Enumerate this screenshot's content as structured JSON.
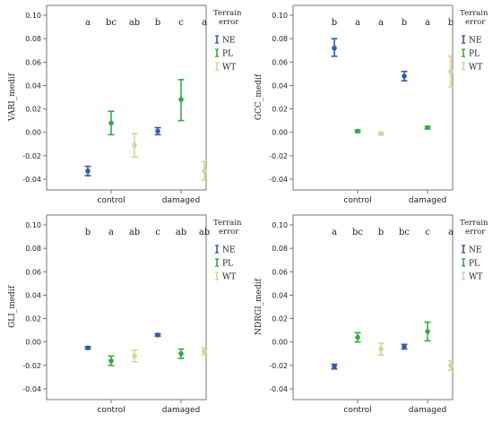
{
  "chart_data": [
    {
      "type": "scatter",
      "ylabel": "VARI_medif",
      "categories": [
        "control",
        "damaged"
      ],
      "ylim": [
        -0.05,
        0.1
      ],
      "yticks": [
        "0.10",
        "0.08",
        "0.06",
        "0.04",
        "0.02",
        "0.00",
        "-0.02",
        "-0.04"
      ],
      "legend_title": "Terrain error",
      "series": [
        {
          "name": "NE",
          "color": "#3a5aa8",
          "mean": [
            -0.033,
            0.001
          ],
          "ci_low": [
            -0.037,
            -0.002
          ],
          "ci_high": [
            -0.029,
            0.004
          ]
        },
        {
          "name": "PL",
          "color": "#3aa84a",
          "mean": [
            0.008,
            0.028
          ],
          "ci_low": [
            -0.002,
            0.01
          ],
          "ci_high": [
            0.018,
            0.045
          ]
        },
        {
          "name": "WT",
          "color": "#d8d49a",
          "mean": [
            -0.011,
            -0.033
          ],
          "ci_low": [
            -0.021,
            -0.041
          ],
          "ci_high": [
            -0.001,
            -0.025
          ]
        }
      ],
      "letters": [
        [
          "a",
          "bc",
          "ab"
        ],
        [
          "b",
          "c",
          "a"
        ]
      ]
    },
    {
      "type": "scatter",
      "ylabel": "GCC_medif",
      "categories": [
        "control",
        "damaged"
      ],
      "ylim": [
        -0.05,
        0.1
      ],
      "yticks": [
        "0.10",
        "0.08",
        "0.06",
        "0.04",
        "0.02",
        "0.00",
        "-0.02",
        "-0.04"
      ],
      "legend_title": "Terrain error",
      "series": [
        {
          "name": "NE",
          "color": "#3a5aa8",
          "mean": [
            0.072,
            0.048
          ],
          "ci_low": [
            0.065,
            0.044
          ],
          "ci_high": [
            0.08,
            0.052
          ]
        },
        {
          "name": "PL",
          "color": "#3aa84a",
          "mean": [
            0.001,
            0.004
          ],
          "ci_low": [
            0.0,
            0.003
          ],
          "ci_high": [
            0.002,
            0.005
          ]
        },
        {
          "name": "WT",
          "color": "#d8d49a",
          "mean": [
            -0.001,
            0.052
          ],
          "ci_low": [
            -0.002,
            0.039
          ],
          "ci_high": [
            0.0,
            0.065
          ]
        }
      ],
      "letters": [
        [
          "b",
          "a",
          "a"
        ],
        [
          "b",
          "a",
          "b"
        ]
      ]
    },
    {
      "type": "scatter",
      "ylabel": "GLI_medif",
      "categories": [
        "control",
        "damaged"
      ],
      "ylim": [
        -0.05,
        0.1
      ],
      "yticks": [
        "0.10",
        "0.08",
        "0.06",
        "0.04",
        "0.02",
        "0.00",
        "-0.02",
        "-0.04"
      ],
      "legend_title": "Terrain error",
      "series": [
        {
          "name": "NE",
          "color": "#3a5aa8",
          "mean": [
            -0.005,
            0.006
          ],
          "ci_low": [
            -0.006,
            0.005
          ],
          "ci_high": [
            -0.004,
            0.007
          ]
        },
        {
          "name": "PL",
          "color": "#3aa84a",
          "mean": [
            -0.016,
            -0.01
          ],
          "ci_low": [
            -0.02,
            -0.014
          ],
          "ci_high": [
            -0.012,
            -0.006
          ]
        },
        {
          "name": "WT",
          "color": "#d8d49a",
          "mean": [
            -0.012,
            -0.008
          ],
          "ci_low": [
            -0.017,
            -0.011
          ],
          "ci_high": [
            -0.007,
            -0.005
          ]
        }
      ],
      "letters": [
        [
          "b",
          "a",
          "ab"
        ],
        [
          "c",
          "ab",
          "ab"
        ]
      ]
    },
    {
      "type": "scatter",
      "ylabel": "NDRGI_medif",
      "categories": [
        "control",
        "damaged"
      ],
      "ylim": [
        -0.05,
        0.1
      ],
      "yticks": [
        "0.10",
        "0.08",
        "0.06",
        "0.04",
        "0.02",
        "0.00",
        "-0.02",
        "-0.04"
      ],
      "legend_title": "Terrain error",
      "series": [
        {
          "name": "NE",
          "color": "#3a5aa8",
          "mean": [
            -0.021,
            -0.004
          ],
          "ci_low": [
            -0.023,
            -0.006
          ],
          "ci_high": [
            -0.019,
            -0.002
          ]
        },
        {
          "name": "PL",
          "color": "#3aa84a",
          "mean": [
            0.004,
            0.009
          ],
          "ci_low": [
            0.0,
            0.001
          ],
          "ci_high": [
            0.008,
            0.017
          ]
        },
        {
          "name": "WT",
          "color": "#d8d49a",
          "mean": [
            -0.006,
            -0.02
          ],
          "ci_low": [
            -0.011,
            -0.024
          ],
          "ci_high": [
            -0.001,
            -0.016
          ]
        }
      ],
      "letters": [
        [
          "a",
          "bc",
          "b"
        ],
        [
          "bc",
          "c",
          "a"
        ]
      ]
    }
  ]
}
